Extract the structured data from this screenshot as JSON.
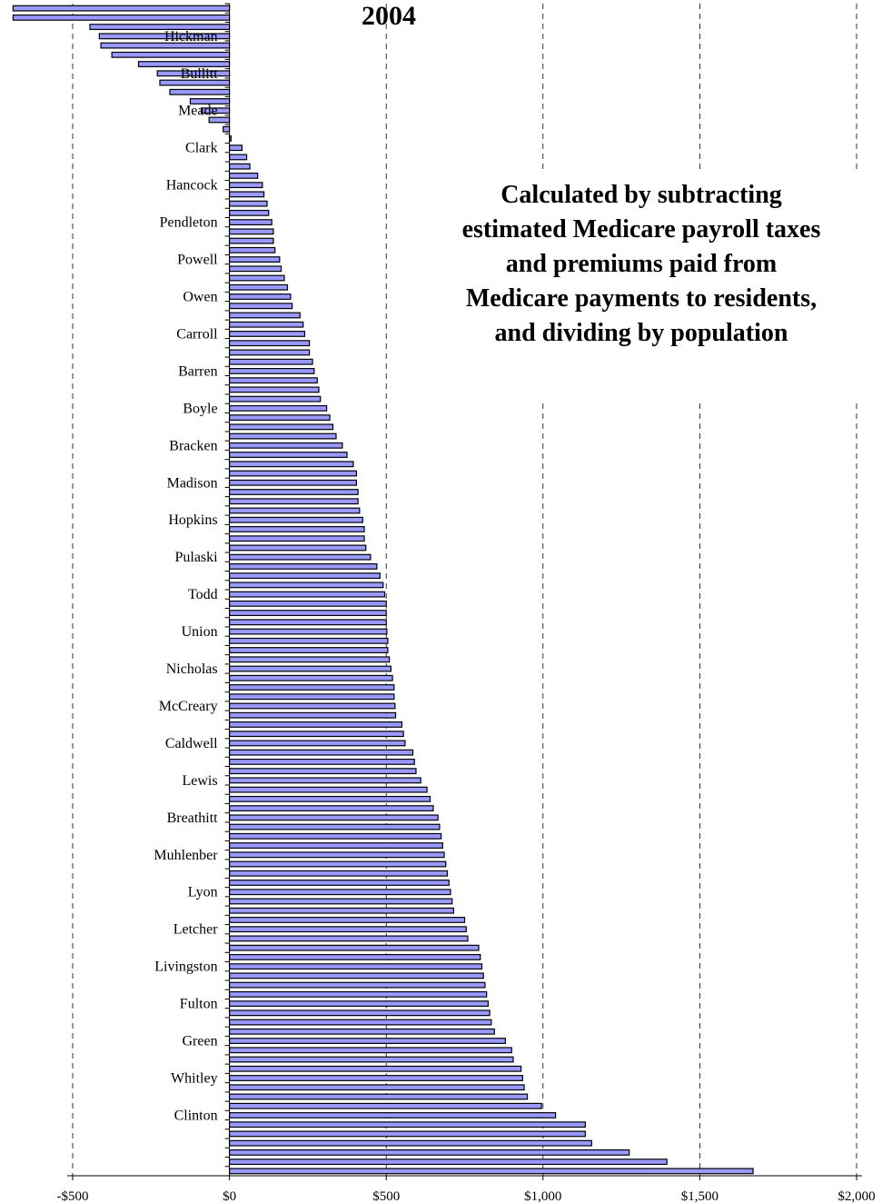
{
  "chart_data": {
    "type": "bar",
    "orientation": "horizontal",
    "title": "2004",
    "annotation": [
      "Calculated by subtracting",
      "estimated Medicare payroll taxes",
      "and premiums paid from",
      "Medicare payments to residents,",
      "and dividing by population"
    ],
    "xlim": [
      -500,
      2000
    ],
    "xticks": [
      -500,
      0,
      500,
      1000,
      1500,
      2000
    ],
    "xtick_labels": [
      "-$500",
      "$0",
      "$500",
      "$1,000",
      "$1,500",
      "$2,000"
    ],
    "grid": "vertical dashed",
    "bar_color": "#9999ff",
    "labeled_categories": [
      {
        "name": "Hickman",
        "index": 3
      },
      {
        "name": "Bullitt",
        "index": 7
      },
      {
        "name": "Meade",
        "index": 11
      },
      {
        "name": "Clark",
        "index": 15
      },
      {
        "name": "Hancock",
        "index": 19
      },
      {
        "name": "Pendleton",
        "index": 23
      },
      {
        "name": "Powell",
        "index": 27
      },
      {
        "name": "Owen",
        "index": 31
      },
      {
        "name": "Carroll",
        "index": 35
      },
      {
        "name": "Barren",
        "index": 39
      },
      {
        "name": "Boyle",
        "index": 43
      },
      {
        "name": "Bracken",
        "index": 47
      },
      {
        "name": "Madison",
        "index": 51
      },
      {
        "name": "Hopkins",
        "index": 55
      },
      {
        "name": "Pulaski",
        "index": 59
      },
      {
        "name": "Todd",
        "index": 63
      },
      {
        "name": "Union",
        "index": 67
      },
      {
        "name": "Nicholas",
        "index": 71
      },
      {
        "name": "McCreary",
        "index": 75
      },
      {
        "name": "Caldwell",
        "index": 79
      },
      {
        "name": "Lewis",
        "index": 83
      },
      {
        "name": "Breathitt",
        "index": 87
      },
      {
        "name": "Muhlenber",
        "index": 91
      },
      {
        "name": "Lyon",
        "index": 95
      },
      {
        "name": "Letcher",
        "index": 99
      },
      {
        "name": "Livingston",
        "index": 103
      },
      {
        "name": "Fulton",
        "index": 107
      },
      {
        "name": "Green",
        "index": 111
      },
      {
        "name": "Whitley",
        "index": 115
      },
      {
        "name": "Clinton",
        "index": 119
      }
    ],
    "values": [
      -690,
      -690,
      -445,
      -415,
      -410,
      -375,
      -290,
      -230,
      -222,
      -190,
      -125,
      -90,
      -65,
      -20,
      5,
      40,
      55,
      65,
      90,
      105,
      110,
      120,
      125,
      135,
      140,
      140,
      145,
      160,
      165,
      175,
      185,
      195,
      200,
      225,
      235,
      240,
      255,
      255,
      265,
      270,
      280,
      285,
      290,
      310,
      320,
      330,
      340,
      360,
      375,
      395,
      405,
      405,
      410,
      410,
      415,
      425,
      430,
      430,
      435,
      450,
      470,
      480,
      490,
      495,
      500,
      500,
      500,
      502,
      505,
      505,
      510,
      515,
      520,
      525,
      525,
      528,
      530,
      550,
      555,
      560,
      585,
      590,
      595,
      610,
      630,
      640,
      650,
      665,
      670,
      675,
      680,
      685,
      690,
      695,
      700,
      705,
      710,
      715,
      750,
      755,
      760,
      795,
      800,
      805,
      810,
      815,
      820,
      825,
      830,
      835,
      845,
      880,
      900,
      905,
      930,
      935,
      940,
      950,
      995,
      1040,
      1135,
      1135,
      1155,
      1275,
      1395,
      1670
    ]
  }
}
